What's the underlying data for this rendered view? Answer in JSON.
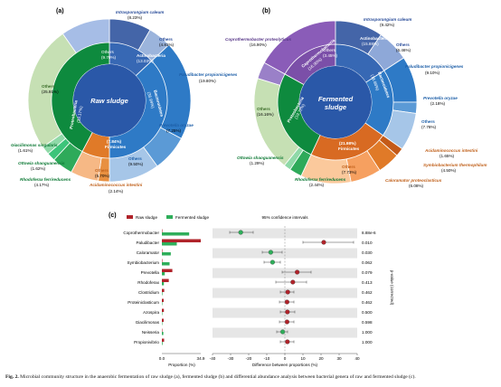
{
  "panel_a": {
    "label": "(a)",
    "center": "Raw sludge",
    "phyla": [
      {
        "name": "Bacteroidetes",
        "pct": "(36.99%)"
      },
      {
        "name": "Proteobacteria",
        "pct": "(33.17%)"
      },
      {
        "name": "Actinobacteria",
        "pct": "(13.03%)"
      },
      {
        "name": "Firmicutes",
        "pct": "(7.84%)"
      }
    ],
    "outer": [
      {
        "name": "Intrasporangium caleum",
        "pct": "(8.23%)"
      },
      {
        "name": "Others",
        "pct": "(4.81%)"
      },
      {
        "name": "Paludibacter propionicigenes",
        "pct": "(19.80%)"
      },
      {
        "name": "Prevotella oryzae",
        "pct": "(7.25%)"
      },
      {
        "name": "Others",
        "pct": "(9.50%)"
      },
      {
        "name": "Acidaminococcus intestini",
        "pct": "(2.14%)"
      },
      {
        "name": "Others",
        "pct": "(5.70%)"
      },
      {
        "name": "Rhodoferax ferrireducens",
        "pct": "(4.17%)"
      },
      {
        "name": "Ottowia shaoguanensis",
        "pct": "(1.62%)"
      },
      {
        "name": "Giacilimonas singularis",
        "pct": "(1.61%)"
      },
      {
        "name": "Others",
        "pct": "(25.91%)"
      },
      {
        "name": "Others",
        "pct": "(9.70%)"
      }
    ]
  },
  "panel_b": {
    "label": "(b)",
    "center_line1": "Fermented",
    "center_line2": "sludge",
    "phyla": [
      {
        "name": "Caprothermobacteria",
        "pct": "(16.90%)"
      },
      {
        "name": "Actinobacteria",
        "pct": "(15.88%)"
      },
      {
        "name": "Bacteroidetes",
        "pct": "(18.86%)"
      },
      {
        "name": "Firmicutes",
        "pct": "(21.98%)"
      },
      {
        "name": "Proteobacteria",
        "pct": "(19.72%)"
      }
    ],
    "outer": [
      {
        "name": "Coprothermobacter proteolyticus",
        "pct": "(16.90%)"
      },
      {
        "name": "Intrasporangium caleum",
        "pct": "(9.42%)"
      },
      {
        "name": "Others",
        "pct": "(6.46%)"
      },
      {
        "name": "Paludibacter propionicigenes",
        "pct": "(9.10%)"
      },
      {
        "name": "Prevotella oryzae",
        "pct": "(2.18%)"
      },
      {
        "name": "Others",
        "pct": "(7.78%)"
      },
      {
        "name": "Acidaminococcus intestini",
        "pct": "(1.65%)"
      },
      {
        "name": "Symbiobacterium thermophilum",
        "pct": "(4.50%)"
      },
      {
        "name": "Caloramator proteoclasticus",
        "pct": "(6.08%)"
      },
      {
        "name": "Others",
        "pct": "(7.73%)"
      },
      {
        "name": "Rhodoferax ferrireducens",
        "pct": "(2.44%)"
      },
      {
        "name": "Ottowia shaoguanensis",
        "pct": "(1.29%)"
      },
      {
        "name": "Others",
        "pct": "(16.16%)"
      },
      {
        "name": "Others",
        "pct": "(3.45%)"
      }
    ]
  },
  "panel_c": {
    "label": "(c)",
    "legend_raw": "Raw sludge",
    "legend_fermented": "Fermented sludge",
    "ci_title": "95% confidence intervals",
    "xlabel_left": "Proportion (%)",
    "xlabel_right": "Difference between proportions (%)",
    "ylabel_right": "p-value (corrected)",
    "left_ticks": [
      "0.0",
      "34.9"
    ],
    "right_ticks": [
      "-40",
      "-30",
      "-20",
      "-10",
      "0",
      "10",
      "20",
      "30",
      "40"
    ]
  },
  "chart_data": {
    "type": "bar",
    "categories": [
      "Coprothermobacter",
      "Paludibacter",
      "Caloramator",
      "Symbiobacterium",
      "Prevotella",
      "Rhodoferax",
      "Clostridium",
      "Proteiniclasticum",
      "Azospira",
      "Giacilimonas",
      "Neisseria",
      "Propionivibrio"
    ],
    "series": [
      {
        "name": "Raw sludge",
        "values": [
          0.1,
          34.9,
          0.2,
          0.1,
          9.4,
          6.2,
          2.1,
          1.6,
          1.8,
          1.6,
          0.1,
          2.0
        ]
      },
      {
        "name": "Fermented sludge",
        "values": [
          24.5,
          13.4,
          8.0,
          6.9,
          2.6,
          1.8,
          0.5,
          0.4,
          0.4,
          0.4,
          1.3,
          0.6
        ]
      }
    ],
    "difference": [
      -24.4,
      21.5,
      -7.8,
      -6.8,
      6.8,
      4.4,
      1.6,
      1.2,
      1.4,
      1.2,
      -1.2,
      1.4
    ],
    "ci_low": [
      -30.5,
      10.0,
      -12.5,
      -11.5,
      -1.5,
      -5.0,
      -2.5,
      -3.0,
      -2.5,
      -3.0,
      -4.5,
      -2.5
    ],
    "ci_high": [
      -17.5,
      38.0,
      -1.5,
      -2.5,
      14.5,
      12.0,
      5.0,
      5.0,
      5.5,
      5.0,
      1.5,
      5.0
    ],
    "p_values": [
      "8.88e-6",
      "0.010",
      "0.030",
      "0.062",
      "0.079",
      "0.413",
      "0.462",
      "0.462",
      "0.500",
      "0.598",
      "1.000",
      "1.000"
    ],
    "ylim_left": [
      0,
      34.9
    ],
    "xlim_right": [
      -40,
      40
    ]
  },
  "colors": {
    "actino_dark": "#4169b4",
    "bactero": "#2e7ac6",
    "proteo": "#0e8a3e",
    "firmi": "#e07a28",
    "copro": "#7b4fa8",
    "raw": "#b0232a",
    "fermented": "#2fae5a"
  },
  "caption": {
    "bold": "Fig. 2.",
    "text": " Microbial community structure in the anaerobic fermentation of raw sludge (a), fermented sludge (b) and differential abundance analysis between bacterial genera of raw and fermented sludge (c)."
  }
}
